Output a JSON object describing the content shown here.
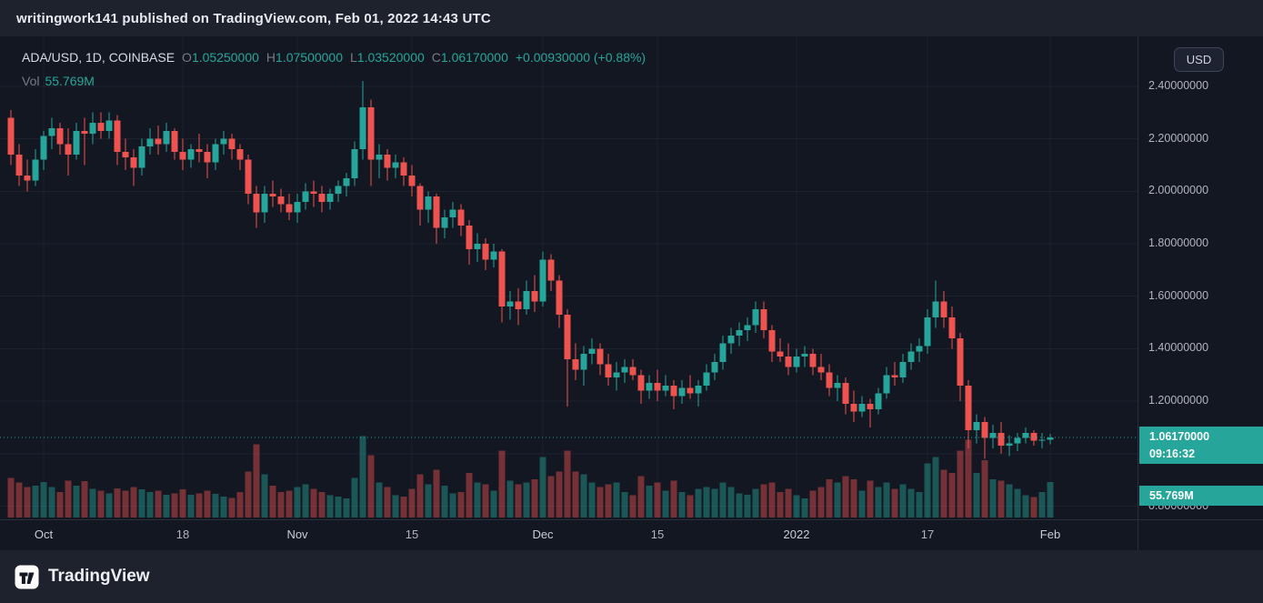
{
  "attribution": {
    "text": "writingwork141 published on TradingView.com, Feb 01, 2022 14:43 UTC"
  },
  "legend": {
    "symbol_info": "ADA/USD, 1D, COINBASE",
    "ohlc": {
      "items": [
        {
          "label": "O",
          "value": "1.05250000"
        },
        {
          "label": "H",
          "value": "1.07500000"
        },
        {
          "label": "L",
          "value": "1.03520000"
        },
        {
          "label": "C",
          "value": "1.06170000"
        }
      ],
      "change": "+0.00930000 (+0.88%)"
    },
    "volume_label": "Vol",
    "volume_value": "55.769M"
  },
  "price_axis": {
    "currency_button_label": "USD",
    "labels": [
      "2.40000000",
      "2.20000000",
      "2.00000000",
      "1.80000000",
      "1.60000000",
      "1.40000000",
      "1.20000000",
      "0.80000000"
    ],
    "last_price_badge": {
      "price": "1.06170000",
      "countdown": "09:16:32"
    },
    "volume_badge": {
      "value": "55.769M"
    }
  },
  "time_axis_note": "labels live in chart_data.x_axis_labels",
  "footer": {
    "brand": "TradingView"
  },
  "colors": {
    "bg": "#131722",
    "panel": "#1e222d",
    "divider": "#2a2e39",
    "text": "#b2b5be",
    "text-dim": "#787b86",
    "text-bright": "#d8dce6",
    "up": "#26a69a",
    "down": "#ef5350"
  },
  "chart_data": {
    "type": "candlestick",
    "symbol": "ADA/USD",
    "interval": "1D",
    "exchange": "COINBASE",
    "last_close": 1.0617,
    "change": 0.0093,
    "change_pct": 0.88,
    "last_volume_m": 55.769,
    "visible_price_range": [
      0.75,
      2.59
    ],
    "grid_prices": [
      2.4,
      2.2,
      2.0,
      1.8,
      1.6,
      1.4,
      1.2,
      1.0,
      0.8
    ],
    "x_axis_labels": [
      {
        "text": "Oct",
        "index": 4,
        "major": true
      },
      {
        "text": "18",
        "index": 21,
        "major": false
      },
      {
        "text": "Nov",
        "index": 35,
        "major": true
      },
      {
        "text": "15",
        "index": 49,
        "major": false
      },
      {
        "text": "Dec",
        "index": 65,
        "major": true
      },
      {
        "text": "15",
        "index": 79,
        "major": false
      },
      {
        "text": "2022",
        "index": 96,
        "major": true
      },
      {
        "text": "17",
        "index": 112,
        "major": false
      },
      {
        "text": "Feb",
        "index": 127,
        "major": true
      }
    ],
    "columns": [
      "date",
      "open",
      "high",
      "low",
      "close",
      "volume_m"
    ],
    "candles": [
      [
        "2021-09-27",
        2.28,
        2.31,
        2.1,
        2.14,
        62
      ],
      [
        "2021-09-28",
        2.14,
        2.18,
        2.02,
        2.06,
        55
      ],
      [
        "2021-09-29",
        2.06,
        2.12,
        2.0,
        2.04,
        48
      ],
      [
        "2021-09-30",
        2.04,
        2.16,
        2.02,
        2.12,
        50
      ],
      [
        "2021-10-01",
        2.12,
        2.23,
        2.08,
        2.21,
        56
      ],
      [
        "2021-10-02",
        2.21,
        2.28,
        2.16,
        2.24,
        48
      ],
      [
        "2021-10-03",
        2.24,
        2.26,
        2.14,
        2.18,
        40
      ],
      [
        "2021-10-04",
        2.18,
        2.24,
        2.06,
        2.14,
        58
      ],
      [
        "2021-10-05",
        2.14,
        2.26,
        2.12,
        2.23,
        50
      ],
      [
        "2021-10-06",
        2.23,
        2.28,
        2.1,
        2.22,
        57
      ],
      [
        "2021-10-07",
        2.22,
        2.3,
        2.18,
        2.26,
        45
      ],
      [
        "2021-10-08",
        2.26,
        2.3,
        2.2,
        2.23,
        42
      ],
      [
        "2021-10-09",
        2.23,
        2.3,
        2.2,
        2.27,
        38
      ],
      [
        "2021-10-10",
        2.27,
        2.29,
        2.1,
        2.15,
        46
      ],
      [
        "2021-10-11",
        2.15,
        2.2,
        2.08,
        2.13,
        42
      ],
      [
        "2021-10-12",
        2.13,
        2.16,
        2.02,
        2.09,
        48
      ],
      [
        "2021-10-13",
        2.09,
        2.2,
        2.06,
        2.17,
        44
      ],
      [
        "2021-10-14",
        2.17,
        2.24,
        2.14,
        2.2,
        40
      ],
      [
        "2021-10-15",
        2.2,
        2.25,
        2.14,
        2.18,
        42
      ],
      [
        "2021-10-16",
        2.18,
        2.26,
        2.15,
        2.23,
        36
      ],
      [
        "2021-10-17",
        2.23,
        2.24,
        2.12,
        2.15,
        38
      ],
      [
        "2021-10-18",
        2.15,
        2.2,
        2.08,
        2.12,
        44
      ],
      [
        "2021-10-19",
        2.12,
        2.18,
        2.09,
        2.16,
        36
      ],
      [
        "2021-10-20",
        2.16,
        2.22,
        2.11,
        2.15,
        38
      ],
      [
        "2021-10-21",
        2.15,
        2.18,
        2.05,
        2.11,
        42
      ],
      [
        "2021-10-22",
        2.11,
        2.2,
        2.08,
        2.18,
        37
      ],
      [
        "2021-10-23",
        2.18,
        2.23,
        2.14,
        2.2,
        33
      ],
      [
        "2021-10-24",
        2.2,
        2.22,
        2.12,
        2.16,
        31
      ],
      [
        "2021-10-25",
        2.16,
        2.18,
        2.08,
        2.12,
        40
      ],
      [
        "2021-10-26",
        2.12,
        2.14,
        1.95,
        1.99,
        72
      ],
      [
        "2021-10-27",
        1.99,
        2.02,
        1.86,
        1.92,
        115
      ],
      [
        "2021-10-28",
        1.92,
        2.02,
        1.88,
        1.99,
        68
      ],
      [
        "2021-10-29",
        1.99,
        2.04,
        1.94,
        1.98,
        50
      ],
      [
        "2021-10-30",
        1.98,
        2.01,
        1.92,
        1.95,
        40
      ],
      [
        "2021-10-31",
        1.95,
        1.99,
        1.89,
        1.92,
        42
      ],
      [
        "2021-11-01",
        1.92,
        1.99,
        1.88,
        1.96,
        48
      ],
      [
        "2021-11-02",
        1.96,
        2.03,
        1.93,
        2.0,
        52
      ],
      [
        "2021-11-03",
        2.0,
        2.04,
        1.94,
        1.99,
        45
      ],
      [
        "2021-11-04",
        1.99,
        2.02,
        1.92,
        1.96,
        40
      ],
      [
        "2021-11-05",
        1.96,
        2.01,
        1.93,
        1.99,
        35
      ],
      [
        "2021-11-06",
        1.99,
        2.04,
        1.96,
        2.02,
        33
      ],
      [
        "2021-11-07",
        2.02,
        2.07,
        1.98,
        2.05,
        30
      ],
      [
        "2021-11-08",
        2.05,
        2.19,
        2.02,
        2.16,
        62
      ],
      [
        "2021-11-09",
        2.16,
        2.42,
        2.12,
        2.32,
        128
      ],
      [
        "2021-11-10",
        2.32,
        2.35,
        2.02,
        2.12,
        98
      ],
      [
        "2021-11-11",
        2.12,
        2.18,
        2.05,
        2.14,
        55
      ],
      [
        "2021-11-12",
        2.14,
        2.16,
        2.04,
        2.09,
        48
      ],
      [
        "2021-11-13",
        2.09,
        2.14,
        2.05,
        2.11,
        35
      ],
      [
        "2021-11-14",
        2.11,
        2.13,
        2.02,
        2.06,
        33
      ],
      [
        "2021-11-15",
        2.06,
        2.1,
        1.98,
        2.02,
        45
      ],
      [
        "2021-11-16",
        2.02,
        2.03,
        1.87,
        1.93,
        68
      ],
      [
        "2021-11-17",
        1.93,
        2.0,
        1.88,
        1.98,
        52
      ],
      [
        "2021-11-18",
        1.98,
        1.99,
        1.8,
        1.86,
        75
      ],
      [
        "2021-11-19",
        1.86,
        1.93,
        1.82,
        1.9,
        50
      ],
      [
        "2021-11-20",
        1.9,
        1.96,
        1.86,
        1.93,
        38
      ],
      [
        "2021-11-21",
        1.93,
        1.95,
        1.83,
        1.87,
        40
      ],
      [
        "2021-11-22",
        1.87,
        1.89,
        1.72,
        1.78,
        70
      ],
      [
        "2021-11-23",
        1.78,
        1.84,
        1.73,
        1.8,
        55
      ],
      [
        "2021-11-24",
        1.8,
        1.82,
        1.7,
        1.74,
        52
      ],
      [
        "2021-11-25",
        1.74,
        1.8,
        1.71,
        1.77,
        42
      ],
      [
        "2021-11-26",
        1.77,
        1.78,
        1.5,
        1.56,
        105
      ],
      [
        "2021-11-27",
        1.56,
        1.62,
        1.51,
        1.58,
        58
      ],
      [
        "2021-11-28",
        1.58,
        1.63,
        1.49,
        1.55,
        52
      ],
      [
        "2021-11-29",
        1.55,
        1.66,
        1.53,
        1.62,
        55
      ],
      [
        "2021-11-30",
        1.62,
        1.68,
        1.54,
        1.58,
        60
      ],
      [
        "2021-12-01",
        1.58,
        1.77,
        1.56,
        1.74,
        95
      ],
      [
        "2021-12-02",
        1.74,
        1.76,
        1.62,
        1.66,
        65
      ],
      [
        "2021-12-03",
        1.66,
        1.68,
        1.48,
        1.53,
        72
      ],
      [
        "2021-12-04",
        1.53,
        1.55,
        1.18,
        1.36,
        105
      ],
      [
        "2021-12-05",
        1.36,
        1.42,
        1.28,
        1.32,
        72
      ],
      [
        "2021-12-06",
        1.32,
        1.41,
        1.26,
        1.38,
        68
      ],
      [
        "2021-12-07",
        1.38,
        1.44,
        1.34,
        1.4,
        55
      ],
      [
        "2021-12-08",
        1.4,
        1.42,
        1.3,
        1.34,
        48
      ],
      [
        "2021-12-09",
        1.34,
        1.38,
        1.26,
        1.29,
        52
      ],
      [
        "2021-12-10",
        1.29,
        1.35,
        1.24,
        1.31,
        55
      ],
      [
        "2021-12-11",
        1.31,
        1.36,
        1.27,
        1.33,
        40
      ],
      [
        "2021-12-12",
        1.33,
        1.36,
        1.28,
        1.3,
        35
      ],
      [
        "2021-12-13",
        1.3,
        1.32,
        1.19,
        1.24,
        65
      ],
      [
        "2021-12-14",
        1.24,
        1.3,
        1.21,
        1.27,
        50
      ],
      [
        "2021-12-15",
        1.27,
        1.32,
        1.2,
        1.24,
        55
      ],
      [
        "2021-12-16",
        1.24,
        1.3,
        1.22,
        1.26,
        42
      ],
      [
        "2021-12-17",
        1.26,
        1.28,
        1.17,
        1.22,
        58
      ],
      [
        "2021-12-18",
        1.22,
        1.28,
        1.19,
        1.25,
        40
      ],
      [
        "2021-12-19",
        1.25,
        1.3,
        1.21,
        1.23,
        35
      ],
      [
        "2021-12-20",
        1.23,
        1.28,
        1.18,
        1.26,
        45
      ],
      [
        "2021-12-21",
        1.26,
        1.34,
        1.24,
        1.31,
        48
      ],
      [
        "2021-12-22",
        1.31,
        1.38,
        1.28,
        1.35,
        45
      ],
      [
        "2021-12-23",
        1.35,
        1.45,
        1.32,
        1.42,
        55
      ],
      [
        "2021-12-24",
        1.42,
        1.48,
        1.38,
        1.45,
        48
      ],
      [
        "2021-12-25",
        1.45,
        1.5,
        1.41,
        1.47,
        38
      ],
      [
        "2021-12-26",
        1.47,
        1.52,
        1.43,
        1.49,
        36
      ],
      [
        "2021-12-27",
        1.49,
        1.58,
        1.46,
        1.55,
        45
      ],
      [
        "2021-12-28",
        1.55,
        1.58,
        1.44,
        1.47,
        52
      ],
      [
        "2021-12-29",
        1.47,
        1.49,
        1.35,
        1.39,
        55
      ],
      [
        "2021-12-30",
        1.39,
        1.44,
        1.35,
        1.37,
        40
      ],
      [
        "2021-12-31",
        1.37,
        1.42,
        1.3,
        1.33,
        45
      ],
      [
        "2022-01-01",
        1.33,
        1.4,
        1.31,
        1.37,
        35
      ],
      [
        "2022-01-02",
        1.37,
        1.41,
        1.33,
        1.38,
        30
      ],
      [
        "2022-01-03",
        1.38,
        1.4,
        1.3,
        1.33,
        42
      ],
      [
        "2022-01-04",
        1.33,
        1.38,
        1.28,
        1.31,
        48
      ],
      [
        "2022-01-05",
        1.31,
        1.34,
        1.22,
        1.25,
        60
      ],
      [
        "2022-01-06",
        1.25,
        1.3,
        1.2,
        1.27,
        55
      ],
      [
        "2022-01-07",
        1.27,
        1.29,
        1.15,
        1.19,
        65
      ],
      [
        "2022-01-08",
        1.19,
        1.24,
        1.12,
        1.16,
        60
      ],
      [
        "2022-01-09",
        1.16,
        1.22,
        1.14,
        1.19,
        42
      ],
      [
        "2022-01-10",
        1.19,
        1.21,
        1.1,
        1.17,
        58
      ],
      [
        "2022-01-11",
        1.17,
        1.25,
        1.15,
        1.23,
        48
      ],
      [
        "2022-01-12",
        1.23,
        1.33,
        1.21,
        1.3,
        55
      ],
      [
        "2022-01-13",
        1.3,
        1.35,
        1.26,
        1.29,
        45
      ],
      [
        "2022-01-14",
        1.29,
        1.38,
        1.27,
        1.35,
        52
      ],
      [
        "2022-01-15",
        1.35,
        1.42,
        1.32,
        1.39,
        45
      ],
      [
        "2022-01-16",
        1.39,
        1.44,
        1.35,
        1.41,
        40
      ],
      [
        "2022-01-17",
        1.41,
        1.55,
        1.38,
        1.52,
        85
      ],
      [
        "2022-01-18",
        1.52,
        1.66,
        1.48,
        1.58,
        95
      ],
      [
        "2022-01-19",
        1.58,
        1.62,
        1.48,
        1.52,
        75
      ],
      [
        "2022-01-20",
        1.52,
        1.56,
        1.4,
        1.44,
        70
      ],
      [
        "2022-01-21",
        1.44,
        1.46,
        1.2,
        1.26,
        105
      ],
      [
        "2022-01-22",
        1.26,
        1.28,
        1.02,
        1.09,
        122
      ],
      [
        "2022-01-23",
        1.09,
        1.15,
        1.04,
        1.12,
        70
      ],
      [
        "2022-01-24",
        1.12,
        1.14,
        0.98,
        1.06,
        90
      ],
      [
        "2022-01-25",
        1.06,
        1.11,
        1.02,
        1.08,
        60
      ],
      [
        "2022-01-26",
        1.08,
        1.12,
        1.0,
        1.03,
        58
      ],
      [
        "2022-01-27",
        1.03,
        1.07,
        0.99,
        1.04,
        52
      ],
      [
        "2022-01-28",
        1.04,
        1.08,
        1.01,
        1.06,
        45
      ],
      [
        "2022-01-29",
        1.06,
        1.1,
        1.04,
        1.08,
        35
      ],
      [
        "2022-01-30",
        1.08,
        1.09,
        1.03,
        1.05,
        32
      ],
      [
        "2022-01-31",
        1.05,
        1.08,
        1.02,
        1.0524,
        40
      ],
      [
        "2022-02-01",
        1.0525,
        1.075,
        1.0352,
        1.0617,
        55.769
      ]
    ]
  }
}
